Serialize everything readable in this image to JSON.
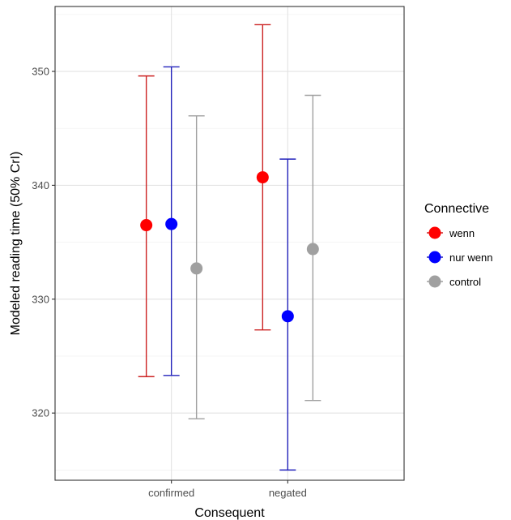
{
  "chart_data": {
    "type": "scatter",
    "subtype": "point-with-errorbars",
    "xlabel": "Consequent",
    "ylabel": "Modeled reading time (50% CrI)",
    "categories": [
      "confirmed",
      "negated"
    ],
    "ylim": [
      314.1,
      355.7
    ],
    "yticks": [
      320,
      330,
      340,
      350
    ],
    "grid": true,
    "legend": {
      "title": "Connective",
      "position": "right"
    },
    "series": [
      {
        "name": "wenn",
        "color": "#ff0000",
        "errorbar_color": "#cc2222",
        "points": [
          {
            "x": "confirmed",
            "y": 336.5,
            "lower": 323.2,
            "upper": 349.6
          },
          {
            "x": "negated",
            "y": 340.7,
            "lower": 327.3,
            "upper": 354.1
          }
        ]
      },
      {
        "name": "nur wenn",
        "color": "#0000ff",
        "errorbar_color": "#2222bb",
        "points": [
          {
            "x": "confirmed",
            "y": 336.6,
            "lower": 323.3,
            "upper": 350.4
          },
          {
            "x": "negated",
            "y": 328.5,
            "lower": 315.0,
            "upper": 342.3
          }
        ]
      },
      {
        "name": "control",
        "color": "#a0a0a0",
        "errorbar_color": "#a0a0a0",
        "points": [
          {
            "x": "confirmed",
            "y": 332.7,
            "lower": 319.5,
            "upper": 346.1
          },
          {
            "x": "negated",
            "y": 334.4,
            "lower": 321.1,
            "upper": 347.9
          }
        ]
      }
    ]
  }
}
